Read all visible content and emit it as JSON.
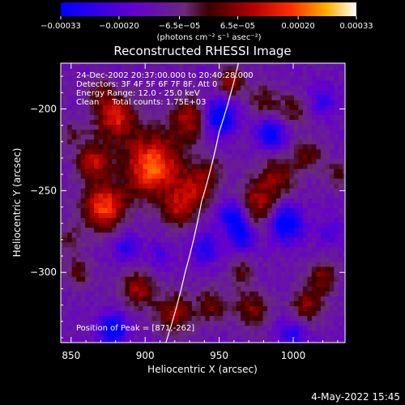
{
  "chart_data": {
    "type": "heatmap",
    "title": "Reconstructed RHESSI Image",
    "xlabel": "Heliocentric X (arcsec)",
    "ylabel": "Heliocentric Y (arcsec)",
    "xlim": [
      843,
      1035
    ],
    "ylim": [
      -343,
      -172
    ],
    "x_ticks": [
      850,
      900,
      950,
      1000
    ],
    "x_tick_labels": [
      "850",
      "900",
      "950",
      "1000"
    ],
    "y_ticks": [
      -200,
      -250,
      -300
    ],
    "y_tick_labels": [
      "−200",
      "−250",
      "−300"
    ],
    "colorbar": {
      "range": [
        -0.00033,
        0.00033
      ],
      "tick_values": [
        -0.00033,
        -0.0002,
        -6.5e-05,
        6.5e-05,
        0.0002,
        0.00033
      ],
      "tick_labels": [
        "−0.00033",
        "−0.00020",
        "−6.5e−05",
        "6.5e−05",
        "0.00020",
        "0.00033"
      ],
      "unit_label": "(photons cm⁻² s⁻¹ asec⁻²)",
      "stops": [
        {
          "v": 0.0,
          "color": "#0000ff"
        },
        {
          "v": 0.25,
          "color": "#6600cc"
        },
        {
          "v": 0.42,
          "color": "#6a2a7a"
        },
        {
          "v": 0.5,
          "color": "#3a0000"
        },
        {
          "v": 0.65,
          "color": "#b40000"
        },
        {
          "v": 0.78,
          "color": "#ff3000"
        },
        {
          "v": 0.9,
          "color": "#ffb000"
        },
        {
          "v": 1.0,
          "color": "#ffffff"
        }
      ]
    },
    "annotations": [
      "24-Dec-2002 20:37:00.000 to 20:40:28.000",
      "Detectors: 3F 4F 5F 6F 7F 8F, Att 0",
      "Energy Range: 12.0 - 25.0 keV",
      "Clean     Total counts: 1.75E+03"
    ],
    "peak_label": "Position of Peak = [871,-262]",
    "peak": {
      "x": 871,
      "y": -262
    },
    "limb_curve": [
      {
        "x": 963,
        "y": -172
      },
      {
        "x": 950,
        "y": -214
      },
      {
        "x": 938,
        "y": -257
      },
      {
        "x": 927,
        "y": -300
      },
      {
        "x": 914,
        "y": -343
      }
    ],
    "grid": false,
    "pixel_size_arcsec": 3,
    "blobs": [
      {
        "x": 905,
        "y": -235,
        "amp": 0.00033,
        "r": 14
      },
      {
        "x": 872,
        "y": -260,
        "amp": 0.0003,
        "r": 10
      },
      {
        "x": 880,
        "y": -205,
        "amp": 0.00025,
        "r": 10
      },
      {
        "x": 865,
        "y": -232,
        "amp": 0.00022,
        "r": 8
      },
      {
        "x": 930,
        "y": -206,
        "amp": 0.00022,
        "r": 9
      },
      {
        "x": 958,
        "y": -183,
        "amp": 0.00021,
        "r": 6
      },
      {
        "x": 935,
        "y": -248,
        "amp": 0.00018,
        "r": 9
      },
      {
        "x": 923,
        "y": -262,
        "amp": 0.00018,
        "r": 8
      },
      {
        "x": 895,
        "y": -310,
        "amp": 0.0002,
        "r": 8
      },
      {
        "x": 920,
        "y": -325,
        "amp": 0.0002,
        "r": 9
      },
      {
        "x": 945,
        "y": -320,
        "amp": 0.00016,
        "r": 7
      },
      {
        "x": 975,
        "y": -258,
        "amp": 0.0002,
        "r": 10
      },
      {
        "x": 990,
        "y": -240,
        "amp": 0.00017,
        "r": 9
      },
      {
        "x": 972,
        "y": -322,
        "amp": 0.00017,
        "r": 8
      },
      {
        "x": 1010,
        "y": -320,
        "amp": 0.00018,
        "r": 8
      },
      {
        "x": 1020,
        "y": -302,
        "amp": 0.00016,
        "r": 7
      },
      {
        "x": 1010,
        "y": -228,
        "amp": 0.00015,
        "r": 7
      },
      {
        "x": 1000,
        "y": -200,
        "amp": 0.00013,
        "r": 7
      },
      {
        "x": 980,
        "y": -195,
        "amp": 0.00014,
        "r": 7
      },
      {
        "x": 855,
        "y": -300,
        "amp": 0.00012,
        "r": 7
      },
      {
        "x": 870,
        "y": -190,
        "amp": 0.00012,
        "r": 6
      },
      {
        "x": 850,
        "y": -215,
        "amp": 0.0001,
        "r": 6
      },
      {
        "x": 848,
        "y": -280,
        "amp": 0.00011,
        "r": 6
      },
      {
        "x": 965,
        "y": -300,
        "amp": 0.00012,
        "r": 6
      },
      {
        "x": 1030,
        "y": -240,
        "amp": 0.00012,
        "r": 6
      },
      {
        "x": 945,
        "y": -236,
        "amp": 9e-05,
        "r": 6
      },
      {
        "x": 950,
        "y": -205,
        "amp": -0.00026,
        "r": 8
      },
      {
        "x": 985,
        "y": -215,
        "amp": -0.00022,
        "r": 7
      },
      {
        "x": 960,
        "y": -265,
        "amp": -0.00024,
        "r": 7
      },
      {
        "x": 995,
        "y": -270,
        "amp": -0.00026,
        "r": 8
      },
      {
        "x": 965,
        "y": -278,
        "amp": -0.0002,
        "r": 6
      },
      {
        "x": 888,
        "y": -285,
        "amp": -0.00015,
        "r": 6
      },
      {
        "x": 878,
        "y": -335,
        "amp": -0.00024,
        "r": 7
      },
      {
        "x": 1000,
        "y": -338,
        "amp": -0.00015,
        "r": 7
      },
      {
        "x": 1020,
        "y": -195,
        "amp": -0.00012,
        "r": 7
      },
      {
        "x": 910,
        "y": -290,
        "amp": -9e-05,
        "r": 6
      },
      {
        "x": 940,
        "y": -285,
        "amp": -0.00015,
        "r": 7
      },
      {
        "x": 1025,
        "y": -275,
        "amp": -0.0001,
        "r": 6
      }
    ]
  },
  "footer": {
    "date": "4-May-2022 15:45"
  }
}
